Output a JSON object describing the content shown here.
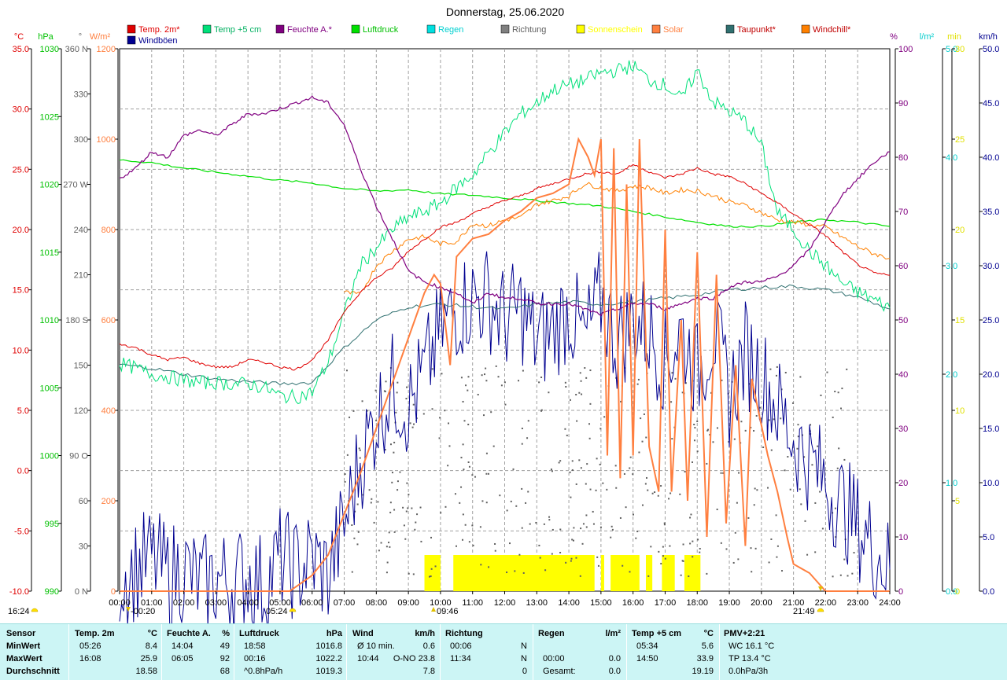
{
  "title": "Donnerstag, 25.06.2020",
  "legend": [
    {
      "label": "Temp. 2m*",
      "color": "#e00000",
      "text_color": "#e00000"
    },
    {
      "label": "Temp +5 cm",
      "color": "#00e07a",
      "text_color": "#00b060"
    },
    {
      "label": "Feuchte A.*",
      "color": "#800080",
      "text_color": "#800080"
    },
    {
      "label": "Luftdruck",
      "color": "#00e000",
      "text_color": "#00c000"
    },
    {
      "label": "Regen",
      "color": "#00e0e0",
      "text_color": "#00d0d0"
    },
    {
      "label": "Richtung",
      "color": "#808080",
      "text_color": "#606060"
    },
    {
      "label": "Sonnenschein",
      "color": "#ffff00",
      "text_color": "#ffff00"
    },
    {
      "label": "Solar",
      "color": "#ff8040",
      "text_color": "#ff8040"
    },
    {
      "label": "Taupunkt*",
      "color": "#307070",
      "text_color": "#c00000"
    },
    {
      "label": "Windchill*",
      "color": "#ff8000",
      "text_color": "#c00000"
    },
    {
      "label": "Windböen",
      "color": "#000090",
      "text_color": "#000090"
    }
  ],
  "colors": {
    "temp": "#e00000",
    "temp5": "#00e07a",
    "humidity": "#800080",
    "pressure": "#00e000",
    "rain": "#00cccc",
    "direction": "#606060",
    "sunshine": "#ffff00",
    "solar": "#ff7f3f",
    "dewpoint": "#307070",
    "gust": "#000090",
    "grid": "#a0a0a0"
  },
  "axis_units": {
    "temp": "°C",
    "pressure": "hPa",
    "direction": "°",
    "solar": "W/m²",
    "humidity": "%",
    "rain": "l/m²",
    "sunshine": "min",
    "wind": "km/h"
  },
  "chart_data": {
    "type": "line",
    "title": "Donnerstag, 25.06.2020",
    "x_label": "",
    "x_ticks": [
      "00:00",
      "01:00",
      "02:00",
      "03:00",
      "04:00",
      "05:00",
      "06:00",
      "07:00",
      "08:00",
      "09:00",
      "10:00",
      "11:00",
      "12:00",
      "13:00",
      "14:00",
      "15:00",
      "16:00",
      "17:00",
      "18:00",
      "19:00",
      "20:00",
      "21:00",
      "22:00",
      "23:00",
      "24:00"
    ],
    "x_range_hours": [
      0,
      24
    ],
    "axes": {
      "temp": {
        "unit": "°C",
        "range": [
          -10,
          35
        ],
        "ticks": [
          "35.0",
          "30.0",
          "25.0",
          "20.0",
          "15.0",
          "10.0",
          "5.0",
          "0.0",
          "-5.0",
          "-10.0"
        ]
      },
      "pressure": {
        "unit": "hPa",
        "range": [
          990,
          1030
        ],
        "ticks": [
          "1030",
          "1025",
          "1020",
          "1015",
          "1010",
          "1005",
          "1000",
          "995",
          "990"
        ]
      },
      "direction": {
        "unit": "°",
        "range": [
          0,
          360
        ],
        "ticks": [
          "360 N",
          "330",
          "300",
          "270 W",
          "240",
          "210",
          "180 S",
          "150",
          "120",
          "90 O",
          "60",
          "30",
          "0 N"
        ]
      },
      "solar": {
        "unit": "W/m²",
        "range": [
          0,
          1200
        ],
        "ticks": [
          "1200",
          "1000",
          "800",
          "600",
          "400",
          "200",
          "0"
        ]
      },
      "humidity": {
        "unit": "%",
        "range": [
          0,
          100
        ],
        "ticks": [
          "100",
          "90",
          "80",
          "70",
          "60",
          "50",
          "40",
          "30",
          "20",
          "10",
          "0"
        ]
      },
      "rain": {
        "unit": "l/m²",
        "range": [
          0,
          5
        ],
        "ticks": [
          "5.0",
          "4.0",
          "3.0",
          "2.0",
          "1.0",
          "0.0"
        ]
      },
      "sunshine": {
        "unit": "min",
        "range": [
          0,
          30
        ],
        "ticks": [
          "30",
          "25",
          "20",
          "15",
          "10",
          "5",
          "0"
        ]
      },
      "wind": {
        "unit": "km/h",
        "range": [
          0,
          50
        ],
        "ticks": [
          "50.0",
          "45.0",
          "40.0",
          "35.0",
          "30.0",
          "25.0",
          "20.0",
          "15.0",
          "10.0",
          "5.0",
          "0.0"
        ]
      }
    },
    "series": [
      {
        "name": "Temp. 2m*",
        "axis": "temp",
        "x": [
          0,
          0.5,
          1,
          1.5,
          2,
          2.5,
          3,
          3.5,
          4,
          4.5,
          5,
          5.5,
          6,
          6.5,
          7,
          7.5,
          8,
          8.5,
          9,
          9.5,
          10,
          10.5,
          11,
          11.5,
          12,
          12.5,
          13,
          13.5,
          14,
          14.5,
          15,
          15.5,
          16,
          16.5,
          17,
          17.5,
          18,
          18.5,
          19,
          19.5,
          20,
          20.5,
          21,
          21.5,
          22,
          22.5,
          23,
          23.5,
          24
        ],
        "y": [
          10.5,
          10.2,
          9.6,
          9.2,
          9.4,
          8.9,
          8.6,
          8.6,
          9.2,
          9.0,
          8.6,
          8.4,
          9.2,
          10.8,
          13.2,
          14.8,
          16.0,
          16.8,
          18.2,
          19.2,
          20.2,
          20.6,
          21.3,
          21.9,
          22.4,
          22.8,
          23.4,
          23.8,
          24.2,
          24.6,
          24.8,
          24.6,
          25.4,
          24.8,
          24.3,
          24.6,
          25.1,
          24.6,
          24.4,
          23.8,
          23.0,
          22.2,
          21.3,
          20.4,
          19.5,
          18.2,
          17.1,
          16.4,
          16.2
        ]
      },
      {
        "name": "Temp +5 cm",
        "axis": "temp",
        "x": [
          0,
          0.5,
          1,
          1.5,
          2,
          2.5,
          3,
          3.5,
          4,
          4.5,
          5,
          5.5,
          6,
          6.5,
          7,
          7.5,
          8,
          8.5,
          9,
          9.5,
          10,
          10.5,
          11,
          11.5,
          12,
          12.5,
          13,
          13.5,
          14,
          14.5,
          15,
          15.5,
          16,
          16.5,
          17,
          17.5,
          18,
          18.5,
          19,
          19.5,
          20,
          20.5,
          21,
          21.5,
          22,
          22.5,
          23,
          23.5,
          24
        ],
        "y": [
          8.9,
          8.5,
          8.0,
          7.8,
          7.5,
          7.3,
          7.3,
          7.2,
          7.2,
          6.9,
          6.2,
          6.1,
          6.5,
          9.0,
          13.0,
          17.0,
          18.5,
          20.0,
          21.0,
          21.5,
          22.2,
          23.5,
          24.5,
          26.4,
          28.0,
          29.6,
          30.5,
          31.6,
          32.0,
          32.4,
          33.0,
          33.2,
          33.6,
          32.4,
          32.0,
          30.8,
          33.2,
          30.6,
          29.8,
          29.0,
          27.0,
          21.4,
          20.0,
          18.2,
          17.0,
          15.6,
          14.8,
          14.2,
          13.5
        ]
      },
      {
        "name": "Feuchte A.*",
        "axis": "humidity",
        "x": [
          0,
          0.5,
          1,
          1.5,
          2,
          2.5,
          3,
          3.5,
          4,
          4.5,
          5,
          5.5,
          6,
          6.5,
          7,
          7.5,
          8,
          8.5,
          9,
          9.5,
          10,
          10.5,
          11,
          11.5,
          12,
          12.5,
          13,
          13.5,
          14,
          14.5,
          15,
          15.5,
          16,
          16.5,
          17,
          17.5,
          18,
          18.5,
          19,
          19.5,
          20,
          20.5,
          21,
          21.5,
          22,
          22.5,
          23,
          23.5,
          24
        ],
        "y": [
          76,
          78,
          81,
          80,
          84,
          85,
          84,
          86,
          88,
          88,
          89,
          90,
          91,
          90,
          86,
          78,
          71,
          65,
          59,
          57,
          56,
          55,
          53,
          55,
          54,
          54,
          53,
          53,
          53,
          52,
          51,
          52,
          53,
          53,
          52,
          53,
          54,
          54,
          56,
          57,
          57,
          58,
          60,
          63,
          68,
          73,
          76,
          79,
          81
        ]
      },
      {
        "name": "Luftdruck",
        "axis": "pressure",
        "x": [
          0,
          1,
          2,
          3,
          4,
          5,
          6,
          7,
          8,
          9,
          10,
          11,
          12,
          13,
          14,
          15,
          16,
          17,
          18,
          19,
          20,
          21,
          22,
          23,
          24
        ],
        "y": [
          1021.8,
          1021.6,
          1021.2,
          1020.9,
          1020.6,
          1020.3,
          1020.1,
          1019.7,
          1019.5,
          1019.6,
          1019.3,
          1019.2,
          1019.0,
          1018.8,
          1018.6,
          1018.4,
          1018.0,
          1017.6,
          1017.2,
          1016.9,
          1016.9,
          1017.2,
          1017.4,
          1017.2,
          1016.9
        ]
      },
      {
        "name": "Taupunkt*",
        "axis": "temp",
        "x": [
          0,
          1,
          2,
          3,
          4,
          5,
          6,
          7,
          8,
          9,
          10,
          11,
          12,
          13,
          14,
          15,
          16,
          17,
          18,
          19,
          20,
          21,
          22,
          23,
          24
        ],
        "y": [
          8.8,
          8.5,
          8.0,
          7.6,
          7.4,
          7.2,
          7.3,
          10.2,
          12.5,
          13.6,
          13.8,
          13.6,
          13.4,
          13.8,
          14.0,
          13.8,
          14.0,
          14.3,
          14.6,
          15.0,
          15.2,
          15.3,
          15.0,
          14.4,
          13.4
        ]
      },
      {
        "name": "Windchill*",
        "axis": "temp",
        "x": [
          0,
          1,
          2,
          3,
          4,
          5,
          6,
          7,
          7.5,
          8,
          8.5,
          9,
          9.5,
          10,
          10.5,
          11,
          11.5,
          12,
          12.5,
          13,
          13.5,
          14,
          14.5,
          15,
          15.5,
          16,
          16.5,
          17,
          17.5,
          18,
          18.5,
          19,
          19.5,
          20,
          20.5,
          21,
          21.5,
          22,
          22.5,
          23,
          23.5,
          24
        ],
        "y": [
          null,
          null,
          null,
          null,
          null,
          null,
          null,
          14.8,
          14.6,
          17.0,
          18.2,
          19.2,
          19.4,
          18.8,
          19.0,
          20.5,
          20.3,
          20.8,
          21.0,
          22.1,
          22.4,
          22.8,
          23.8,
          23.5,
          23.2,
          23.6,
          23.5,
          23.0,
          23.3,
          23.2,
          22.8,
          22.3,
          22.0,
          21.4,
          20.8,
          20.6,
          20.4,
          20.2,
          19.4,
          18.6,
          18.0,
          17.6
        ]
      },
      {
        "name": "Solar",
        "axis": "solar",
        "x": [
          0,
          5.3,
          6,
          6.5,
          7,
          7.5,
          8,
          8.5,
          9,
          9.5,
          9.8,
          10,
          10.3,
          10.5,
          11,
          11.5,
          12,
          12.5,
          13,
          13.5,
          14,
          14.3,
          14.6,
          14.8,
          15,
          15.2,
          15.4,
          15.6,
          15.8,
          16,
          16.2,
          16.5,
          16.8,
          17,
          17.2,
          17.5,
          17.7,
          18,
          18.3,
          18.6,
          18.9,
          19.2,
          19.5,
          19.7,
          19.9,
          20.2,
          20.5,
          20.8,
          21,
          21.5,
          22,
          24
        ],
        "y": [
          0,
          0,
          35,
          80,
          170,
          260,
          360,
          460,
          560,
          660,
          700,
          680,
          500,
          740,
          780,
          790,
          820,
          840,
          870,
          880,
          900,
          1000,
          960,
          920,
          1000,
          300,
          980,
          250,
          900,
          300,
          1000,
          320,
          220,
          800,
          220,
          600,
          200,
          750,
          120,
          700,
          150,
          500,
          100,
          470,
          400,
          300,
          220,
          120,
          60,
          40,
          0,
          0
        ]
      },
      {
        "name": "Windböen",
        "axis": "wind",
        "x": [
          0,
          0.5,
          1,
          1.5,
          2,
          2.5,
          3,
          3.5,
          4,
          4.5,
          5,
          5.5,
          6,
          6.5,
          7,
          7.5,
          8,
          8.5,
          9,
          9.5,
          10,
          10.5,
          11,
          11.5,
          12,
          12.5,
          13,
          13.5,
          14,
          14.5,
          15,
          15.5,
          16,
          16.5,
          17,
          17.5,
          18,
          18.5,
          19,
          19.5,
          20,
          20.5,
          21,
          21.5,
          22,
          22.5,
          23,
          23.5,
          24
        ],
        "y": [
          1.5,
          2.0,
          3.0,
          1.5,
          2.0,
          0.5,
          1.0,
          1.0,
          1.5,
          0.5,
          3.0,
          2.0,
          3.0,
          1.5,
          6.0,
          12.0,
          16.0,
          19.0,
          17.0,
          20.0,
          24.0,
          26.0,
          27.0,
          27.0,
          25.0,
          26.0,
          23.0,
          24.0,
          26.0,
          23.0,
          27.0,
          23.0,
          25.0,
          24.0,
          21.0,
          24.0,
          20.0,
          24.0,
          18.0,
          22.0,
          20.0,
          17.0,
          14.0,
          12.0,
          10.0,
          8.0,
          6.0,
          4.0,
          2.0
        ]
      },
      {
        "name": "Sonnenschein",
        "axis": "sunshine",
        "intervals": [
          [
            9.5,
            10.0
          ],
          [
            10.4,
            14.8
          ],
          [
            15.0,
            15.1
          ],
          [
            15.3,
            16.2
          ],
          [
            16.4,
            16.6
          ],
          [
            16.9,
            17.3
          ],
          [
            17.6,
            18.1
          ]
        ],
        "value": 1
      }
    ],
    "markers": {
      "left_time": "16:24",
      "sunrise_time": "05:24",
      "sunset_time": "21:49",
      "marker_a": "-00:20",
      "marker_b": "09:46"
    }
  },
  "summary": {
    "headers": [
      {
        "label": "Sensor",
        "unit": ""
      },
      {
        "label": "Temp. 2m",
        "unit": "°C"
      },
      {
        "label": "Feuchte A.",
        "unit": "%"
      },
      {
        "label": "Luftdruck",
        "unit": "hPa"
      },
      {
        "label": "Wind",
        "unit": "km/h"
      },
      {
        "label": "Richtung",
        "unit": ""
      },
      {
        "label": "Regen",
        "unit": "l/m²"
      },
      {
        "label": "Temp +5 cm",
        "unit": "°C"
      },
      {
        "label": "PMV+2:21",
        "unit": ""
      }
    ],
    "rows": [
      {
        "label": "MinWert",
        "cells": [
          [
            "05:26",
            "8.4"
          ],
          [
            "14:04",
            "49"
          ],
          [
            "18:58",
            "1016.8"
          ],
          [
            "Ø 10 min.",
            "0.6"
          ],
          [
            "00:06",
            "N"
          ],
          [
            "",
            ""
          ],
          [
            "05:34",
            "5.6"
          ],
          [
            "WC 16.1 °C",
            ""
          ]
        ]
      },
      {
        "label": "MaxWert",
        "cells": [
          [
            "16:08",
            "25.9"
          ],
          [
            "06:05",
            "92"
          ],
          [
            "00:16",
            "1022.2"
          ],
          [
            "10:44",
            "O-NO 23.8"
          ],
          [
            "11:34",
            "N"
          ],
          [
            "00:00",
            "0.0"
          ],
          [
            "14:50",
            "33.9"
          ],
          [
            "TP 13.4 °C",
            ""
          ]
        ]
      },
      {
        "label": "Durchschnitt",
        "cells": [
          [
            "",
            "18.58"
          ],
          [
            "",
            "68"
          ],
          [
            "^0.8hPa/h",
            "1019.3"
          ],
          [
            "",
            "7.8"
          ],
          [
            "",
            "0"
          ],
          [
            "Gesamt:",
            "0.0"
          ],
          [
            "",
            "19.19"
          ],
          [
            "0.0hPa/3h",
            ""
          ]
        ]
      }
    ]
  }
}
